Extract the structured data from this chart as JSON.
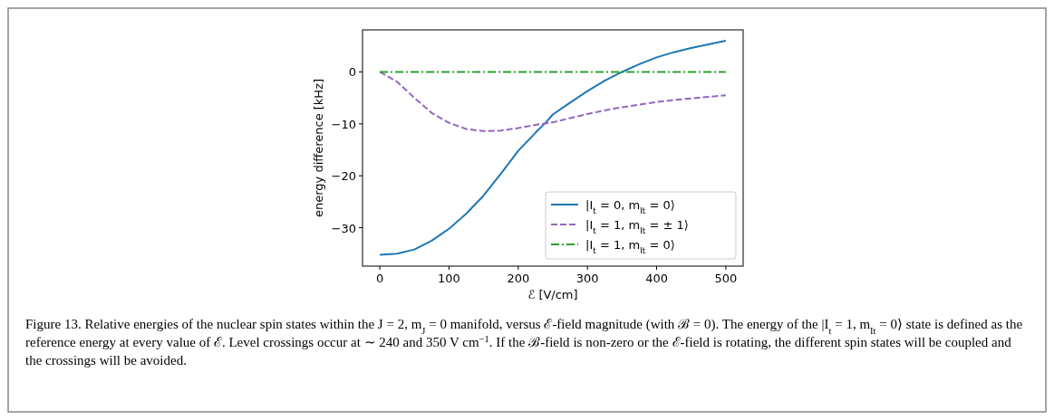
{
  "chart_data": {
    "type": "line",
    "xlabel": "ℰ [V/cm]",
    "ylabel": "energy difference [kHz]",
    "x": [
      0,
      25,
      50,
      75,
      100,
      125,
      150,
      175,
      200,
      225,
      240,
      250,
      275,
      300,
      325,
      350,
      375,
      400,
      425,
      450,
      475,
      500
    ],
    "series": [
      {
        "name": "|I$_{t}$ = 0, m$_{It}$ = 0⟩",
        "color": "#1f77b4",
        "line_style": "solid",
        "values": [
          -35.2,
          -35.0,
          -34.2,
          -32.5,
          -30.2,
          -27.3,
          -23.8,
          -19.6,
          -15.2,
          -11.7,
          -9.7,
          -8.2,
          -5.9,
          -3.7,
          -1.7,
          0,
          1.5,
          2.8,
          3.8,
          4.6,
          5.3,
          6.0
        ]
      },
      {
        "name": "|I$_{t}$ = 1, m$_{It}$ = ± 1⟩",
        "color": "#9467bd",
        "line_style": "dashed",
        "values": [
          0,
          -1.9,
          -5.0,
          -7.9,
          -9.8,
          -11.0,
          -11.4,
          -11.3,
          -10.8,
          -10.2,
          -9.9,
          -9.7,
          -8.9,
          -8.1,
          -7.4,
          -6.8,
          -6.3,
          -5.8,
          -5.4,
          -5.1,
          -4.8,
          -4.5
        ]
      },
      {
        "name": "|I$_{t}$ = 1, m$_{It}$ = 0⟩",
        "color": "#2ca02c",
        "line_style": "dashdot",
        "values": [
          0,
          0,
          0,
          0,
          0,
          0,
          0,
          0,
          0,
          0,
          0,
          0,
          0,
          0,
          0,
          0,
          0,
          0,
          0,
          0,
          0,
          0
        ]
      }
    ],
    "xlim": [
      -25,
      525
    ],
    "ylim": [
      -37.4,
      8.1
    ],
    "xticks": [
      0,
      100,
      200,
      300,
      400,
      500
    ],
    "yticks": [
      {
        "value": 0,
        "label": "0"
      },
      {
        "value": -10,
        "label": "−10"
      },
      {
        "value": -20,
        "label": "−20"
      },
      {
        "value": -30,
        "label": "−30"
      }
    ],
    "legend": "bottom right",
    "grid": false,
    "annotations": [
      "Figure 13. Relative energies of the nuclear spin states within the J = 2, m$_{J}$ = 0 manifold, versus ℰ-field magnitude (with ℬ = 0). The energy of the |I$_{t}$ = 1, m$_{It}$ = 0⟩ state is defined as the reference energy at every value of ℰ. Level crossings occur at ∼ 240 and 350 V cm$^{−1}$. If the ℬ-field is non-zero or the ℰ-field is rotating, the different spin states will be coupled and the crossings will be avoided."
    ]
  }
}
